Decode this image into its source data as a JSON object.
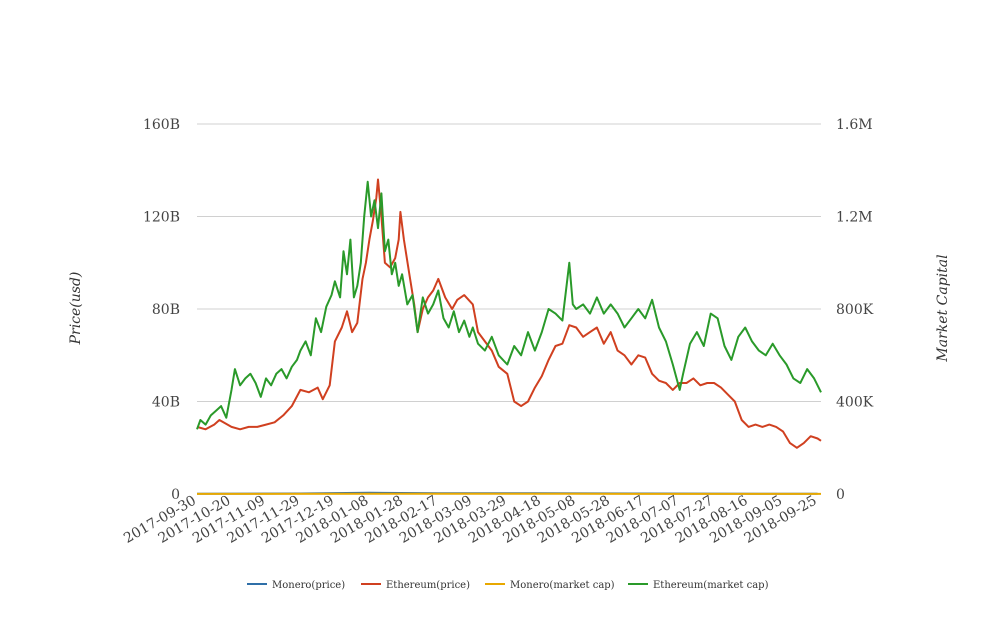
{
  "chart_data": {
    "type": "line",
    "title": "",
    "ylabel_left": "Price(usd)",
    "ylabel_right": "Market Capital",
    "xlim": [
      "2017-09-30",
      "2018-09-27"
    ],
    "ylim_left": [
      0,
      160000000000
    ],
    "ylim_right": [
      0,
      1600000
    ],
    "left_ticks": [
      {
        "value": 0,
        "label": "0"
      },
      {
        "value": 40000000000,
        "label": "40B"
      },
      {
        "value": 80000000000,
        "label": "80B"
      },
      {
        "value": 120000000000,
        "label": "120B"
      },
      {
        "value": 160000000000,
        "label": "160B"
      }
    ],
    "right_ticks": [
      {
        "value": 0,
        "label": "0"
      },
      {
        "value": 400000,
        "label": "400K"
      },
      {
        "value": 800000,
        "label": "800K"
      },
      {
        "value": 1200000,
        "label": "1.2M"
      },
      {
        "value": 1600000,
        "label": "1.6M"
      }
    ],
    "x_ticks": [
      "2017-09-30",
      "2017-10-20",
      "2017-11-09",
      "2017-11-29",
      "2017-12-19",
      "2018-01-08",
      "2018-01-28",
      "2018-02-17",
      "2018-03-09",
      "2018-03-29",
      "2018-04-18",
      "2018-05-08",
      "2018-05-28",
      "2018-06-17",
      "2018-07-07",
      "2018-07-27",
      "2018-08-16",
      "2018-09-05",
      "2018-09-25"
    ],
    "grid": true,
    "legend_position": "bottom",
    "series": [
      {
        "name": "Monero(price)",
        "axis": "left",
        "color": "#2f6fa8",
        "points": [
          [
            "2017-09-30",
            100000000.0
          ],
          [
            "2017-11-29",
            200000000.0
          ],
          [
            "2017-12-19",
            400000000.0
          ],
          [
            "2018-01-08",
            500000000.0
          ],
          [
            "2018-02-17",
            300000000.0
          ],
          [
            "2018-04-18",
            300000000.0
          ],
          [
            "2018-06-17",
            200000000.0
          ],
          [
            "2018-09-25",
            100000000.0
          ]
        ]
      },
      {
        "name": "Ethereum(price)",
        "axis": "left",
        "color": "#d04020",
        "points": [
          [
            "2017-09-30",
            29000000000.0
          ],
          [
            "2017-10-05",
            28000000000.0
          ],
          [
            "2017-10-10",
            30000000000.0
          ],
          [
            "2017-10-13",
            32000000000.0
          ],
          [
            "2017-10-20",
            29000000000.0
          ],
          [
            "2017-10-25",
            28000000000.0
          ],
          [
            "2017-10-30",
            29000000000.0
          ],
          [
            "2017-11-04",
            29000000000.0
          ],
          [
            "2017-11-09",
            30000000000.0
          ],
          [
            "2017-11-14",
            31000000000.0
          ],
          [
            "2017-11-19",
            34000000000.0
          ],
          [
            "2017-11-24",
            38000000000.0
          ],
          [
            "2017-11-29",
            45000000000.0
          ],
          [
            "2017-12-04",
            44000000000.0
          ],
          [
            "2017-12-09",
            46000000000.0
          ],
          [
            "2017-12-12",
            41000000000.0
          ],
          [
            "2017-12-16",
            47000000000.0
          ],
          [
            "2017-12-19",
            66000000000.0
          ],
          [
            "2017-12-23",
            72000000000.0
          ],
          [
            "2017-12-26",
            79000000000.0
          ],
          [
            "2017-12-29",
            70000000000.0
          ],
          [
            "2018-01-01",
            74000000000.0
          ],
          [
            "2018-01-04",
            93000000000.0
          ],
          [
            "2018-01-06",
            100000000000.0
          ],
          [
            "2018-01-08",
            110000000000.0
          ],
          [
            "2018-01-10",
            118000000000.0
          ],
          [
            "2018-01-12",
            128000000000.0
          ],
          [
            "2018-01-13",
            136000000000.0
          ],
          [
            "2018-01-15",
            120000000000.0
          ],
          [
            "2018-01-17",
            100000000000.0
          ],
          [
            "2018-01-20",
            98000000000.0
          ],
          [
            "2018-01-23",
            102000000000.0
          ],
          [
            "2018-01-25",
            110000000000.0
          ],
          [
            "2018-01-26",
            122000000000.0
          ],
          [
            "2018-01-28",
            110000000000.0
          ],
          [
            "2018-01-31",
            96000000000.0
          ],
          [
            "2018-02-03",
            82000000000.0
          ],
          [
            "2018-02-05",
            70000000000.0
          ],
          [
            "2018-02-08",
            80000000000.0
          ],
          [
            "2018-02-11",
            85000000000.0
          ],
          [
            "2018-02-14",
            88000000000.0
          ],
          [
            "2018-02-17",
            93000000000.0
          ],
          [
            "2018-02-21",
            85000000000.0
          ],
          [
            "2018-02-25",
            80000000000.0
          ],
          [
            "2018-02-28",
            84000000000.0
          ],
          [
            "2018-03-04",
            86000000000.0
          ],
          [
            "2018-03-09",
            82000000000.0
          ],
          [
            "2018-03-12",
            70000000000.0
          ],
          [
            "2018-03-16",
            66000000000.0
          ],
          [
            "2018-03-20",
            62000000000.0
          ],
          [
            "2018-03-24",
            55000000000.0
          ],
          [
            "2018-03-29",
            52000000000.0
          ],
          [
            "2018-04-02",
            40000000000.0
          ],
          [
            "2018-04-06",
            38000000000.0
          ],
          [
            "2018-04-10",
            40000000000.0
          ],
          [
            "2018-04-14",
            46000000000.0
          ],
          [
            "2018-04-18",
            51000000000.0
          ],
          [
            "2018-04-22",
            58000000000.0
          ],
          [
            "2018-04-26",
            64000000000.0
          ],
          [
            "2018-04-30",
            65000000000.0
          ],
          [
            "2018-05-04",
            73000000000.0
          ],
          [
            "2018-05-08",
            72000000000.0
          ],
          [
            "2018-05-12",
            68000000000.0
          ],
          [
            "2018-05-16",
            70000000000.0
          ],
          [
            "2018-05-20",
            72000000000.0
          ],
          [
            "2018-05-24",
            65000000000.0
          ],
          [
            "2018-05-28",
            70000000000.0
          ],
          [
            "2018-06-01",
            62000000000.0
          ],
          [
            "2018-06-05",
            60000000000.0
          ],
          [
            "2018-06-09",
            56000000000.0
          ],
          [
            "2018-06-13",
            60000000000.0
          ],
          [
            "2018-06-17",
            59000000000.0
          ],
          [
            "2018-06-21",
            52000000000.0
          ],
          [
            "2018-06-25",
            49000000000.0
          ],
          [
            "2018-06-29",
            48000000000.0
          ],
          [
            "2018-07-03",
            45000000000.0
          ],
          [
            "2018-07-07",
            48000000000.0
          ],
          [
            "2018-07-11",
            48000000000.0
          ],
          [
            "2018-07-15",
            50000000000.0
          ],
          [
            "2018-07-19",
            47000000000.0
          ],
          [
            "2018-07-23",
            48000000000.0
          ],
          [
            "2018-07-27",
            48000000000.0
          ],
          [
            "2018-07-31",
            46000000000.0
          ],
          [
            "2018-08-04",
            43000000000.0
          ],
          [
            "2018-08-08",
            40000000000.0
          ],
          [
            "2018-08-12",
            32000000000.0
          ],
          [
            "2018-08-16",
            29000000000.0
          ],
          [
            "2018-08-20",
            30000000000.0
          ],
          [
            "2018-08-24",
            29000000000.0
          ],
          [
            "2018-08-28",
            30000000000.0
          ],
          [
            "2018-09-01",
            29000000000.0
          ],
          [
            "2018-09-05",
            27000000000.0
          ],
          [
            "2018-09-09",
            22000000000.0
          ],
          [
            "2018-09-13",
            20000000000.0
          ],
          [
            "2018-09-17",
            22000000000.0
          ],
          [
            "2018-09-21",
            25000000000.0
          ],
          [
            "2018-09-25",
            24000000000.0
          ],
          [
            "2018-09-27",
            23000000000.0
          ]
        ]
      },
      {
        "name": "Monero(market cap)",
        "axis": "right",
        "color": "#e8a800",
        "points": [
          [
            "2017-09-30",
            400
          ],
          [
            "2018-01-08",
            900
          ],
          [
            "2018-05-08",
            700
          ],
          [
            "2018-09-27",
            500
          ]
        ]
      },
      {
        "name": "Ethereum(market cap)",
        "axis": "right",
        "color": "#2a9a2a",
        "points": [
          [
            "2017-09-30",
            280000
          ],
          [
            "2017-10-02",
            320000
          ],
          [
            "2017-10-05",
            300000
          ],
          [
            "2017-10-08",
            340000
          ],
          [
            "2017-10-11",
            360000
          ],
          [
            "2017-10-14",
            380000
          ],
          [
            "2017-10-17",
            330000
          ],
          [
            "2017-10-20",
            450000
          ],
          [
            "2017-10-22",
            540000
          ],
          [
            "2017-10-25",
            470000
          ],
          [
            "2017-10-28",
            500000
          ],
          [
            "2017-10-31",
            520000
          ],
          [
            "2017-11-03",
            480000
          ],
          [
            "2017-11-06",
            420000
          ],
          [
            "2017-11-09",
            500000
          ],
          [
            "2017-11-12",
            470000
          ],
          [
            "2017-11-15",
            520000
          ],
          [
            "2017-11-18",
            540000
          ],
          [
            "2017-11-21",
            500000
          ],
          [
            "2017-11-24",
            550000
          ],
          [
            "2017-11-27",
            580000
          ],
          [
            "2017-11-29",
            620000
          ],
          [
            "2017-12-02",
            660000
          ],
          [
            "2017-12-05",
            600000
          ],
          [
            "2017-12-08",
            760000
          ],
          [
            "2017-12-11",
            700000
          ],
          [
            "2017-12-14",
            810000
          ],
          [
            "2017-12-17",
            860000
          ],
          [
            "2017-12-19",
            920000
          ],
          [
            "2017-12-22",
            850000
          ],
          [
            "2017-12-24",
            1050000
          ],
          [
            "2017-12-26",
            950000
          ],
          [
            "2017-12-28",
            1100000
          ],
          [
            "2017-12-30",
            850000
          ],
          [
            "2018-01-01",
            900000
          ],
          [
            "2018-01-03",
            1000000
          ],
          [
            "2018-01-05",
            1200000
          ],
          [
            "2018-01-07",
            1350000
          ],
          [
            "2018-01-09",
            1200000
          ],
          [
            "2018-01-11",
            1270000
          ],
          [
            "2018-01-13",
            1150000
          ],
          [
            "2018-01-15",
            1300000
          ],
          [
            "2018-01-17",
            1050000
          ],
          [
            "2018-01-19",
            1100000
          ],
          [
            "2018-01-21",
            950000
          ],
          [
            "2018-01-23",
            1000000
          ],
          [
            "2018-01-25",
            900000
          ],
          [
            "2018-01-27",
            950000
          ],
          [
            "2018-01-30",
            820000
          ],
          [
            "2018-02-02",
            860000
          ],
          [
            "2018-02-05",
            700000
          ],
          [
            "2018-02-08",
            850000
          ],
          [
            "2018-02-11",
            780000
          ],
          [
            "2018-02-14",
            820000
          ],
          [
            "2018-02-17",
            880000
          ],
          [
            "2018-02-20",
            760000
          ],
          [
            "2018-02-23",
            720000
          ],
          [
            "2018-02-26",
            790000
          ],
          [
            "2018-03-01",
            700000
          ],
          [
            "2018-03-04",
            750000
          ],
          [
            "2018-03-07",
            680000
          ],
          [
            "2018-03-09",
            720000
          ],
          [
            "2018-03-12",
            650000
          ],
          [
            "2018-03-16",
            620000
          ],
          [
            "2018-03-20",
            680000
          ],
          [
            "2018-03-24",
            600000
          ],
          [
            "2018-03-29",
            560000
          ],
          [
            "2018-04-02",
            640000
          ],
          [
            "2018-04-06",
            600000
          ],
          [
            "2018-04-10",
            700000
          ],
          [
            "2018-04-14",
            620000
          ],
          [
            "2018-04-18",
            700000
          ],
          [
            "2018-04-22",
            800000
          ],
          [
            "2018-04-26",
            780000
          ],
          [
            "2018-04-30",
            750000
          ],
          [
            "2018-05-04",
            1000000
          ],
          [
            "2018-05-06",
            820000
          ],
          [
            "2018-05-08",
            800000
          ],
          [
            "2018-05-12",
            820000
          ],
          [
            "2018-05-16",
            780000
          ],
          [
            "2018-05-20",
            850000
          ],
          [
            "2018-05-24",
            780000
          ],
          [
            "2018-05-28",
            820000
          ],
          [
            "2018-06-01",
            780000
          ],
          [
            "2018-06-05",
            720000
          ],
          [
            "2018-06-09",
            760000
          ],
          [
            "2018-06-13",
            800000
          ],
          [
            "2018-06-17",
            760000
          ],
          [
            "2018-06-21",
            840000
          ],
          [
            "2018-06-25",
            720000
          ],
          [
            "2018-06-29",
            660000
          ],
          [
            "2018-07-03",
            560000
          ],
          [
            "2018-07-07",
            450000
          ],
          [
            "2018-07-09",
            520000
          ],
          [
            "2018-07-13",
            650000
          ],
          [
            "2018-07-17",
            700000
          ],
          [
            "2018-07-21",
            640000
          ],
          [
            "2018-07-25",
            780000
          ],
          [
            "2018-07-29",
            760000
          ],
          [
            "2018-08-02",
            640000
          ],
          [
            "2018-08-06",
            580000
          ],
          [
            "2018-08-10",
            680000
          ],
          [
            "2018-08-14",
            720000
          ],
          [
            "2018-08-18",
            660000
          ],
          [
            "2018-08-22",
            620000
          ],
          [
            "2018-08-26",
            600000
          ],
          [
            "2018-08-30",
            650000
          ],
          [
            "2018-09-03",
            600000
          ],
          [
            "2018-09-07",
            560000
          ],
          [
            "2018-09-11",
            500000
          ],
          [
            "2018-09-15",
            480000
          ],
          [
            "2018-09-19",
            540000
          ],
          [
            "2018-09-23",
            500000
          ],
          [
            "2018-09-27",
            440000
          ]
        ]
      }
    ]
  }
}
